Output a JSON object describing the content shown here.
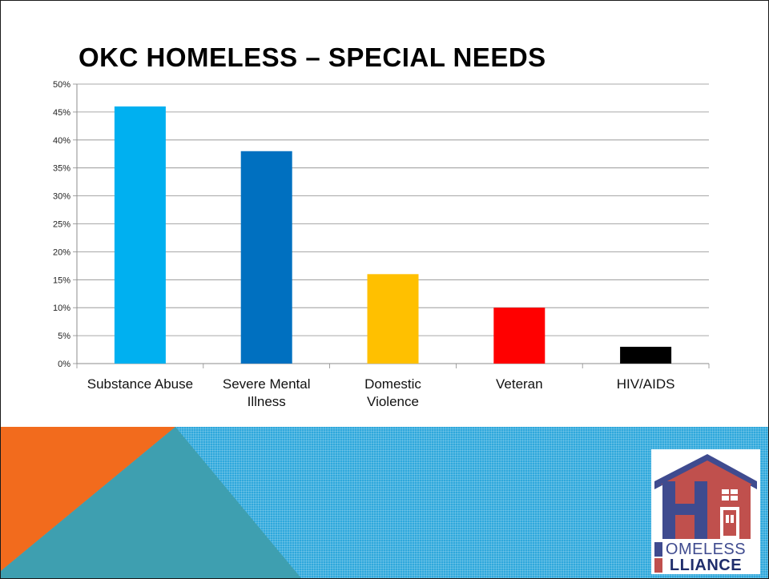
{
  "slide": {
    "title": "OKC HOMELESS – SPECIAL NEEDS"
  },
  "chart_data": {
    "type": "bar",
    "categories": [
      "Substance Abuse",
      "Severe Mental Illness",
      "Domestic Violence",
      "Veteran",
      "HIV/AIDS"
    ],
    "category_lines": [
      [
        "Substance Abuse"
      ],
      [
        "Severe Mental",
        "Illness"
      ],
      [
        "Domestic",
        "Violence"
      ],
      [
        "Veteran"
      ],
      [
        "HIV/AIDS"
      ]
    ],
    "values": [
      46,
      38,
      16,
      10,
      3
    ],
    "unit": "%",
    "ylim": [
      0,
      50
    ],
    "yticks": [
      0,
      5,
      10,
      15,
      20,
      25,
      30,
      35,
      40,
      45,
      50
    ],
    "ytick_labels": [
      "0%",
      "5%",
      "10%",
      "15%",
      "20%",
      "25%",
      "30%",
      "35%",
      "40%",
      "45%",
      "50%"
    ],
    "bar_colors": [
      "#00b0f0",
      "#0070c0",
      "#ffc000",
      "#ff0000",
      "#000000"
    ],
    "grid": true,
    "legend": "none"
  },
  "logo": {
    "line1": "OMELESS",
    "line2": "LLIANCE",
    "colors": {
      "roof": "#3f4b8f",
      "wall": "#c0504d",
      "letter": "#3f4b8f"
    }
  },
  "decor": {
    "band_color": "#2fa8dc",
    "orange": "#f26b1d",
    "teal": "#3e9fb0"
  }
}
